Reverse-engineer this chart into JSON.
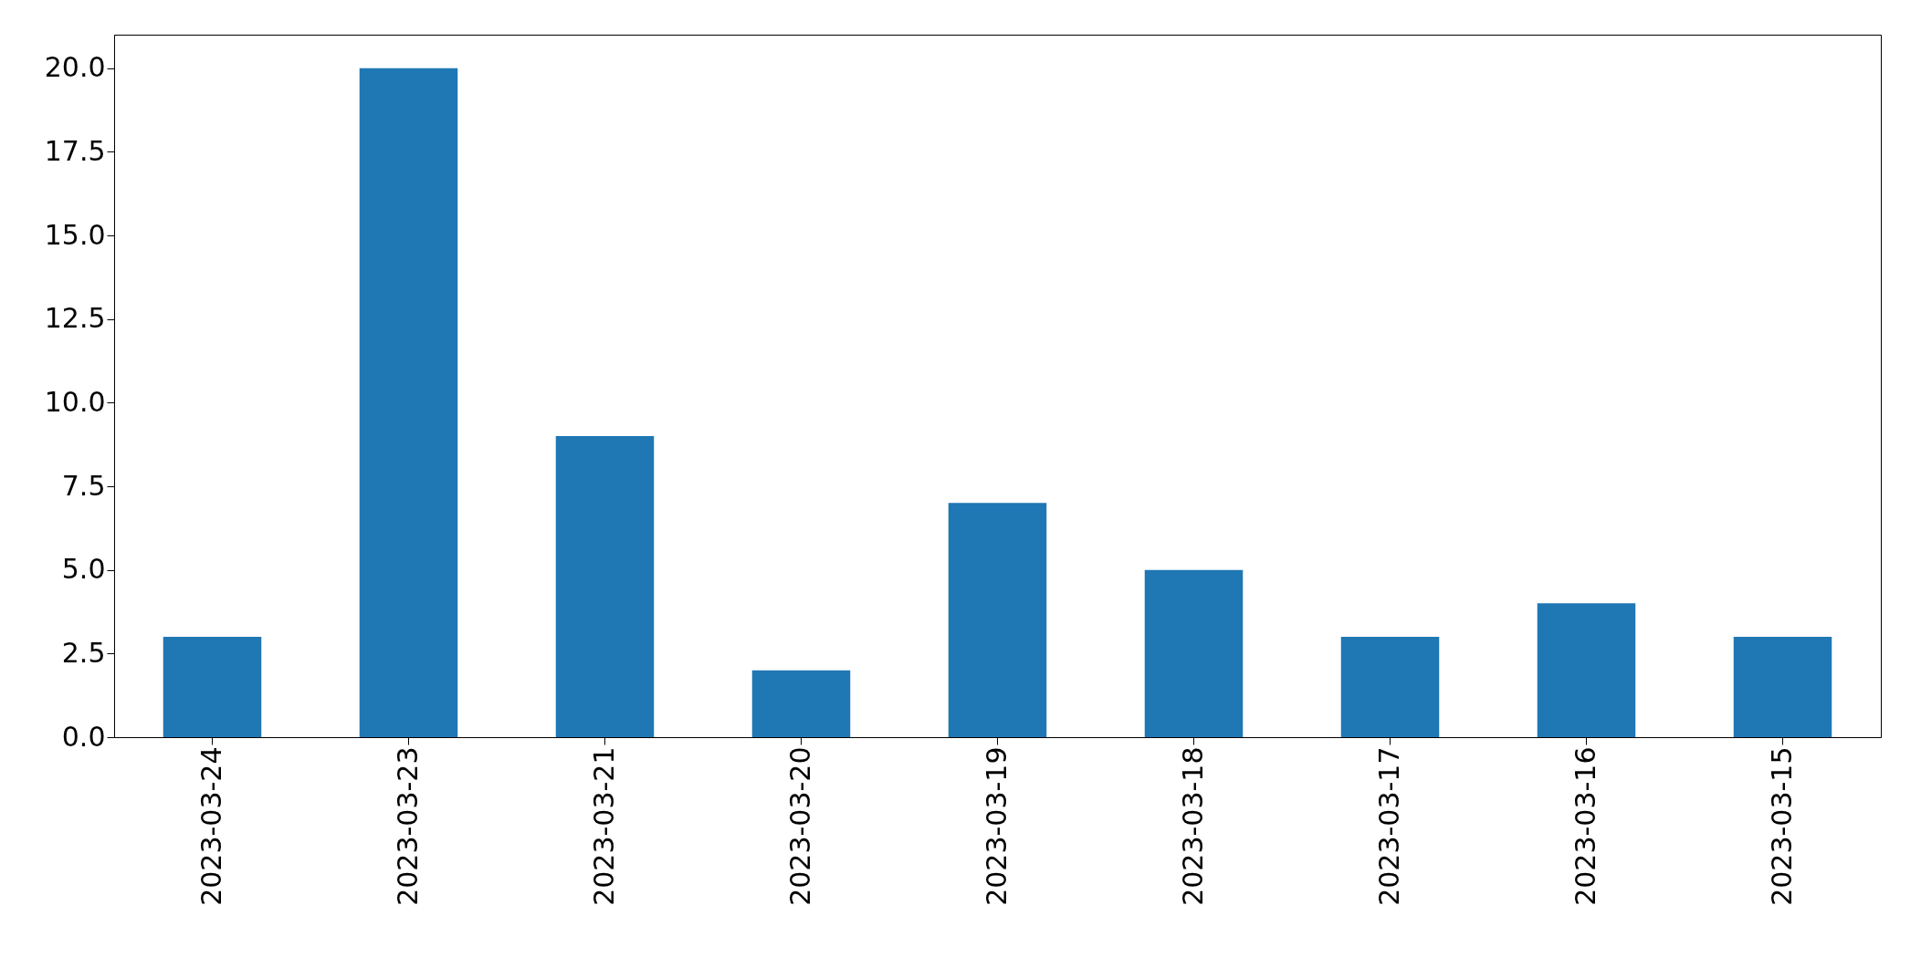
{
  "chart_data": {
    "type": "bar",
    "categories": [
      "2023-03-24",
      "2023-03-23",
      "2023-03-21",
      "2023-03-20",
      "2023-03-19",
      "2023-03-18",
      "2023-03-17",
      "2023-03-16",
      "2023-03-15"
    ],
    "values": [
      3,
      20,
      9,
      2,
      7,
      5,
      3,
      4,
      3
    ],
    "color": "#1f77b4",
    "ylim": [
      0,
      21
    ],
    "yticks": [
      {
        "value": 0,
        "label": "0.0"
      },
      {
        "value": 2.5,
        "label": "2.5"
      },
      {
        "value": 5,
        "label": "5.0"
      },
      {
        "value": 7.5,
        "label": "7.5"
      },
      {
        "value": 10,
        "label": "10.0"
      },
      {
        "value": 12.5,
        "label": "12.5"
      },
      {
        "value": 15,
        "label": "15.0"
      },
      {
        "value": 17.5,
        "label": "17.5"
      },
      {
        "value": 20,
        "label": "20.0"
      }
    ],
    "grid": false
  }
}
